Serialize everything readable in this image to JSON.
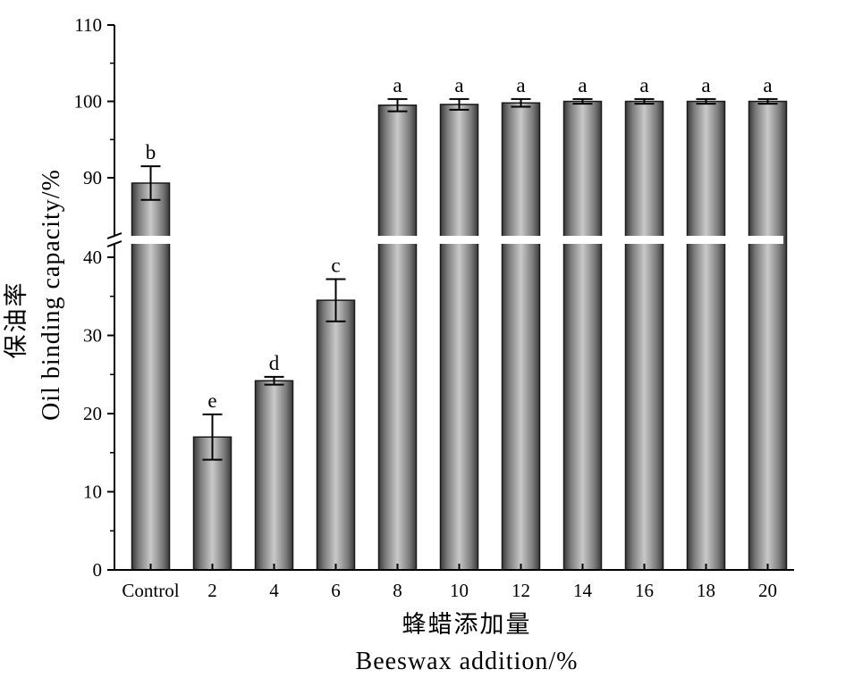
{
  "chart_data": {
    "type": "bar",
    "categories": [
      "Control",
      "2",
      "4",
      "6",
      "8",
      "10",
      "12",
      "14",
      "16",
      "18",
      "20"
    ],
    "values": [
      89.3,
      17.0,
      24.2,
      34.5,
      99.5,
      99.6,
      99.8,
      100.0,
      100.0,
      100.0,
      100.0
    ],
    "errors": [
      2.2,
      2.9,
      0.5,
      2.7,
      0.8,
      0.7,
      0.5,
      0.3,
      0.3,
      0.3,
      0.3
    ],
    "significance": [
      "b",
      "e",
      "d",
      "c",
      "a",
      "a",
      "a",
      "a",
      "a",
      "a",
      "a"
    ],
    "ylabel_zh": "保油率",
    "ylabel": "Oil binding capacity/%",
    "xlabel_zh": "蜂蜡添加量",
    "xlabel": "Beeswax addition/%",
    "y_lower_range": [
      0,
      45
    ],
    "y_upper_range": [
      80,
      110
    ],
    "y_lower_ticks": [
      0,
      10,
      20,
      30,
      40
    ],
    "y_upper_ticks": [
      90,
      100,
      110
    ],
    "axis_break": true,
    "bar_color": "#6b6b6b",
    "grid": false
  }
}
